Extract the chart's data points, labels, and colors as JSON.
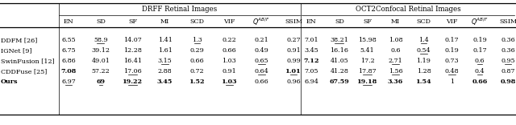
{
  "title_left": "DRFF Retinal Images",
  "title_right": "OCT2Confocal Retinal Images",
  "col_headers": [
    "EN",
    "SD",
    "SF",
    "MI",
    "SCD",
    "VIF",
    "Q^{AB/F}",
    "SSIM"
  ],
  "row_labels": [
    "DDFM [26]",
    "IGNet [9]",
    "SwinFusion [12]",
    "CDDFuse [25]",
    "Ours"
  ],
  "drff_data": [
    [
      "6.55",
      "58.9",
      "14.07",
      "1.41",
      "1.3",
      "0.22",
      "0.21",
      "0.27"
    ],
    [
      "6.75",
      "39.12",
      "12.28",
      "1.61",
      "0.29",
      "0.66",
      "0.49",
      "0.91"
    ],
    [
      "6.86",
      "49.01",
      "16.41",
      "3.15",
      "0.66",
      "1.03",
      "0.65",
      "0.99"
    ],
    [
      "7.08",
      "57.22",
      "17.06",
      "2.88",
      "0.72",
      "0.91",
      "0.64",
      "1.01"
    ],
    [
      "6.97",
      "69",
      "19.22",
      "3.45",
      "1.52",
      "1.03",
      "0.66",
      "0.96"
    ]
  ],
  "oct2_data": [
    [
      "7.01",
      "38.21",
      "15.98",
      "1.08",
      "1.4",
      "0.17",
      "0.19",
      "0.36"
    ],
    [
      "3.45",
      "16.16",
      "5.41",
      "0.6",
      "0.54",
      "0.19",
      "0.17",
      "0.36"
    ],
    [
      "7.12",
      "41.05",
      "17.2",
      "2.71",
      "1.19",
      "0.73",
      "0.6",
      "0.95"
    ],
    [
      "7.05",
      "41.28",
      "17.87",
      "1.56",
      "1.28",
      "0.48",
      "0.4",
      "0.87"
    ],
    [
      "6.94",
      "67.59",
      "19.18",
      "3.36",
      "1.54",
      "1",
      "0.66",
      "0.98"
    ]
  ],
  "drff_bold": [
    [
      false,
      false,
      false,
      false,
      false,
      false,
      false,
      false
    ],
    [
      false,
      false,
      false,
      false,
      false,
      false,
      false,
      false
    ],
    [
      false,
      false,
      false,
      false,
      false,
      false,
      false,
      false
    ],
    [
      true,
      false,
      false,
      false,
      false,
      false,
      false,
      true
    ],
    [
      false,
      true,
      true,
      true,
      true,
      true,
      false,
      false
    ]
  ],
  "oct2_bold": [
    [
      false,
      false,
      false,
      false,
      false,
      false,
      false,
      false
    ],
    [
      false,
      false,
      false,
      false,
      false,
      false,
      false,
      false
    ],
    [
      true,
      false,
      false,
      false,
      false,
      false,
      false,
      false
    ],
    [
      false,
      false,
      false,
      false,
      false,
      false,
      false,
      false
    ],
    [
      false,
      true,
      true,
      true,
      true,
      false,
      true,
      true
    ]
  ],
  "drff_underline": [
    [
      false,
      true,
      false,
      false,
      true,
      false,
      false,
      false
    ],
    [
      false,
      false,
      false,
      false,
      false,
      false,
      false,
      false
    ],
    [
      false,
      false,
      false,
      true,
      false,
      false,
      true,
      false
    ],
    [
      false,
      false,
      true,
      false,
      false,
      false,
      true,
      true
    ],
    [
      true,
      true,
      true,
      false,
      false,
      true,
      false,
      false
    ]
  ],
  "oct2_underline": [
    [
      false,
      true,
      false,
      false,
      true,
      false,
      false,
      false
    ],
    [
      false,
      false,
      false,
      false,
      true,
      false,
      false,
      false
    ],
    [
      false,
      false,
      false,
      true,
      false,
      false,
      true,
      true
    ],
    [
      false,
      false,
      true,
      true,
      false,
      true,
      true,
      false
    ],
    [
      false,
      false,
      true,
      false,
      false,
      false,
      false,
      false
    ]
  ]
}
